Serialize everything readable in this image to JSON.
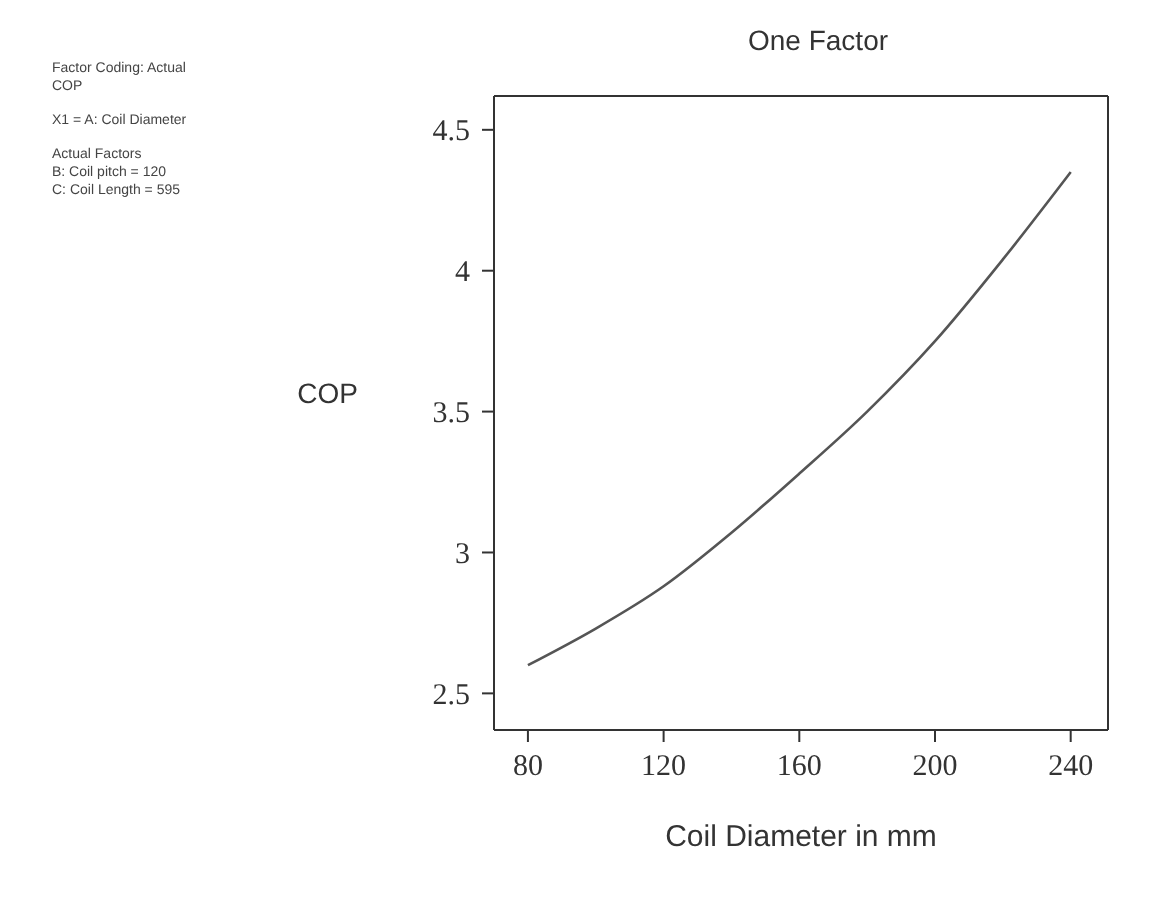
{
  "chart_data": {
    "type": "line",
    "title": "One Factor",
    "xlabel": "Coil Diameter in mm",
    "ylabel": "COP",
    "annotations": [
      "Factor Coding: Actual",
      "COP",
      "X1 = A: Coil Diameter",
      "Actual Factors",
      "B: Coil pitch = 120",
      "C: Coil Length = 595"
    ],
    "x": [
      80,
      100,
      120,
      140,
      160,
      180,
      200,
      220,
      240
    ],
    "series": [
      {
        "color": "#555555",
        "values": [
          2.6,
          2.73,
          2.88,
          3.07,
          3.28,
          3.5,
          3.75,
          4.04,
          4.35
        ]
      }
    ],
    "xlim": [
      70,
      251
    ],
    "xticks": [
      80,
      120,
      160,
      200,
      240
    ],
    "ylim": [
      2.37,
      4.62
    ],
    "yticks": [
      2.5,
      3,
      3.5,
      4,
      4.5
    ],
    "grid": false,
    "marker": "none",
    "line_style": "solid"
  }
}
